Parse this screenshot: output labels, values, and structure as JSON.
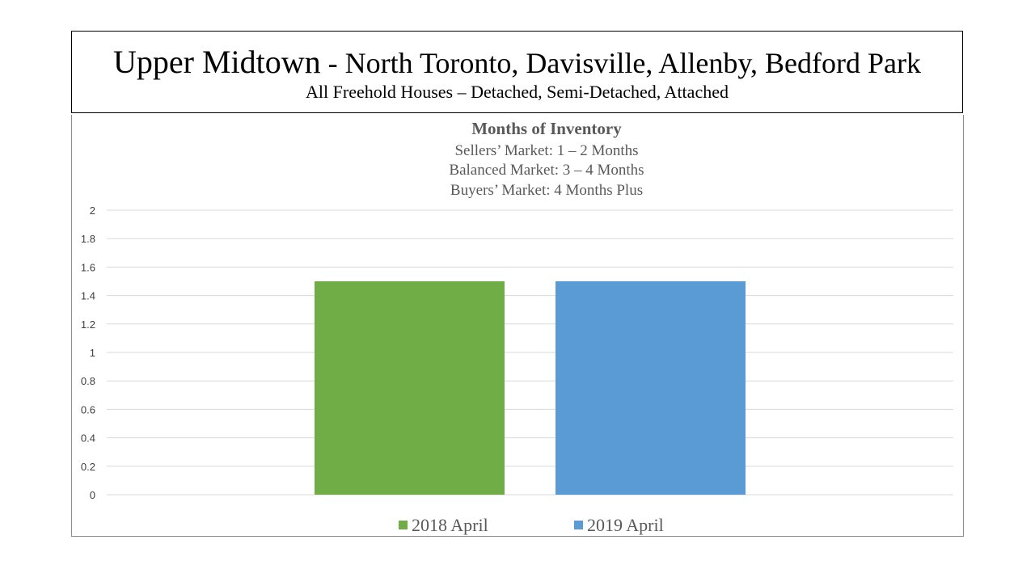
{
  "header": {
    "title_main": "Upper Midtown",
    "title_suffix": " - North Toronto, Davisville, Allenby, Bedford Park",
    "subtitle": "All Freehold Houses – Detached, Semi-Detached, Attached"
  },
  "chart_data": {
    "type": "bar",
    "title": "Months of Inventory",
    "subtitle_lines": [
      "Sellers’ Market:  1 – 2 Months",
      "Balanced Market:  3 – 4 Months",
      "Buyers’ Market:  4 Months Plus"
    ],
    "categories": [
      ""
    ],
    "series": [
      {
        "name": "2018 April",
        "values": [
          1.5
        ],
        "color": "#70AD47"
      },
      {
        "name": "2019 April",
        "values": [
          1.5
        ],
        "color": "#5B9BD5"
      }
    ],
    "ylim": [
      0,
      2
    ],
    "yticks": [
      "0",
      "0.2",
      "0.4",
      "0.6",
      "0.8",
      "1",
      "1.2",
      "1.4",
      "1.6",
      "1.8",
      "2"
    ],
    "grid": true,
    "legend": "bottom"
  }
}
